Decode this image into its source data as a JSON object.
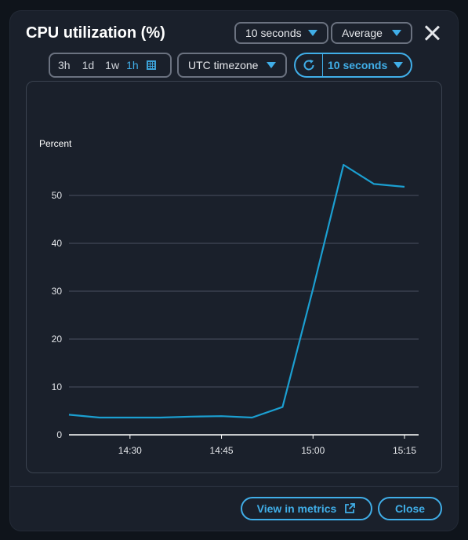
{
  "dialog": {
    "title": "CPU utilization (%)",
    "period": "10 seconds",
    "statistic": "Average"
  },
  "toolbar": {
    "ranges": [
      "3h",
      "1d",
      "1w",
      "1h"
    ],
    "active_range": "1h",
    "timezone": "UTC timezone",
    "refresh_interval": "10 seconds"
  },
  "chart_data": {
    "type": "line",
    "ylabel": "Percent",
    "ylim": [
      0,
      60
    ],
    "yticks": [
      0,
      10,
      20,
      30,
      40,
      50
    ],
    "xticks": [
      "14:30",
      "14:45",
      "15:00",
      "15:15"
    ],
    "x": [
      "14:20",
      "14:25",
      "14:30",
      "14:35",
      "14:40",
      "14:45",
      "14:50",
      "14:55",
      "15:00",
      "15:05",
      "15:10",
      "15:15"
    ],
    "series": [
      {
        "values": [
          4.2,
          3.6,
          3.6,
          3.6,
          3.8,
          3.9,
          3.6,
          5.8,
          30.5,
          56.4,
          52.4,
          51.8
        ]
      }
    ],
    "colors": {
      "line": "#1b9fd1",
      "grid": "#4a5160",
      "axis": "#ffffff"
    }
  },
  "footer": {
    "view_in_metrics": "View in metrics",
    "close": "Close"
  }
}
